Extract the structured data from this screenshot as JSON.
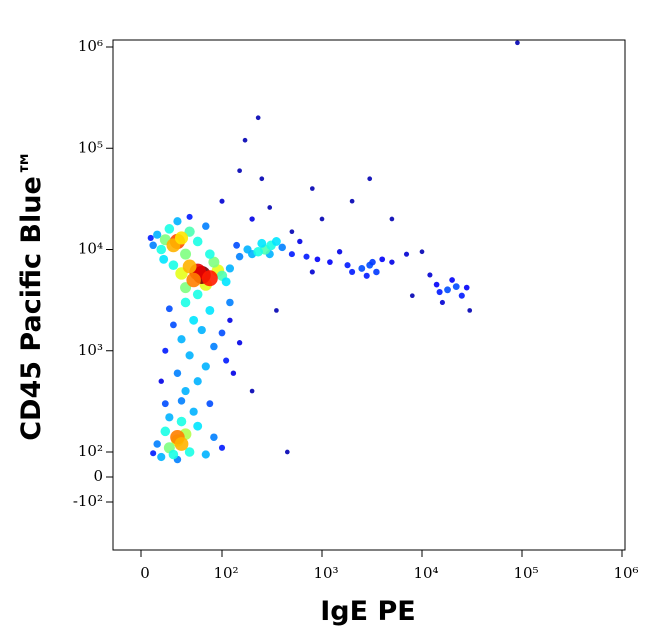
{
  "chart_data": {
    "type": "scatter",
    "x_label": "IgE PE",
    "y_label": "CD45 Pacific Blue™",
    "xlim": [
      -35,
      1070000
    ],
    "ylim": [
      -390,
      1140000
    ],
    "xticks": [
      0,
      {
        "value": 100,
        "label": "10²"
      },
      {
        "value": 1000,
        "label": "10³"
      },
      {
        "value": 10000,
        "label": "10⁴"
      },
      {
        "value": 100000,
        "label": "10⁵"
      },
      {
        "value": 1000000,
        "label": "10⁶"
      }
    ],
    "yticks": [
      {
        "value": -100,
        "label": "-10²"
      },
      0,
      {
        "value": 100,
        "label": "10²"
      },
      {
        "value": 1000,
        "label": "10³"
      },
      {
        "value": 10000,
        "label": "10⁴"
      },
      {
        "value": 100000,
        "label": "10⁵"
      },
      {
        "value": 1000000,
        "label": "10⁶"
      }
    ],
    "x": [
      45,
      35,
      55,
      40,
      60,
      30,
      70,
      25,
      80,
      50,
      20,
      90,
      65,
      35,
      45,
      100,
      15,
      85,
      50,
      30,
      45,
      50,
      55,
      70,
      45,
      80,
      60,
      90,
      50,
      75,
      65,
      100,
      40,
      110,
      30,
      85,
      55,
      120,
      35,
      150,
      130,
      25,
      45,
      40,
      50,
      30,
      60,
      25,
      35,
      55,
      20,
      70,
      15,
      45,
      80,
      28,
      40,
      12,
      60,
      75,
      70,
      85,
      65,
      95,
      60,
      80,
      100,
      55,
      90,
      110,
      70,
      120,
      50,
      85,
      270,
      230,
      310,
      350,
      200,
      250,
      400,
      180,
      300,
      150,
      140,
      500,
      700,
      900,
      1200,
      1800,
      2500,
      3000,
      3500,
      2800,
      4000,
      5000,
      600,
      1500,
      2000,
      3200,
      7000,
      800,
      18000,
      22000,
      15000,
      25000,
      20000,
      14000,
      28000,
      12000,
      16000,
      8000,
      30000,
      300,
      250,
      500,
      1000,
      2000,
      800,
      3000,
      150,
      100,
      200,
      90000,
      450,
      350,
      200,
      120,
      10000,
      5000,
      230,
      170
    ],
    "values": [
      130,
      110,
      150,
      90,
      100,
      160,
      180,
      80,
      90,
      200,
      120,
      140,
      250,
      220,
      70,
      110,
      95,
      300,
      320,
      300,
      140,
      120,
      400,
      500,
      600,
      700,
      900,
      1100,
      1300,
      1600,
      2000,
      1500,
      1800,
      800,
      1000,
      2500,
      3000,
      3000,
      2600,
      1200,
      600,
      500,
      12000,
      11000,
      13000,
      12500,
      15000,
      10000,
      16000,
      9000,
      14000,
      12000,
      11000,
      19000,
      17000,
      8000,
      7000,
      13000,
      21000,
      5600,
      6000,
      5200,
      5000,
      6200,
      6800,
      4500,
      5500,
      4200,
      7500,
      4800,
      3600,
      6500,
      5800,
      9000,
      10000,
      9500,
      11000,
      12000,
      9000,
      11500,
      10500,
      10000,
      9000,
      8500,
      11000,
      9000,
      8500,
      8000,
      7500,
      7000,
      6500,
      7000,
      6000,
      5500,
      8000,
      7500,
      12000,
      9500,
      6000,
      7500,
      9000,
      6000,
      4000,
      4300,
      3800,
      3500,
      5000,
      4500,
      4200,
      5600,
      3000,
      3500,
      2500,
      26000,
      50000,
      15000,
      20000,
      30000,
      40000,
      50000,
      60000,
      30000,
      20000,
      1100000,
      100,
      2500,
      400,
      2000,
      9500,
      20000,
      200000,
      120000
    ],
    "density": [
      0.6,
      0.5,
      0.55,
      0.4,
      0.4,
      0.4,
      0.35,
      0.3,
      0.3,
      0.4,
      0.25,
      0.25,
      0.3,
      0.3,
      0.25,
      0.15,
      0.15,
      0.2,
      0.25,
      0.2,
      0.75,
      0.7,
      0.3,
      0.3,
      0.25,
      0.3,
      0.3,
      0.25,
      0.3,
      0.3,
      0.35,
      0.2,
      0.2,
      0.15,
      0.15,
      0.35,
      0.4,
      0.25,
      0.2,
      0.1,
      0.1,
      0.1,
      0.8,
      0.7,
      0.65,
      0.5,
      0.45,
      0.4,
      0.4,
      0.5,
      0.3,
      0.4,
      0.25,
      0.3,
      0.25,
      0.35,
      0.4,
      0.15,
      0.15,
      1,
      0.9,
      0.85,
      0.75,
      0.6,
      0.7,
      0.6,
      0.45,
      0.5,
      0.5,
      0.35,
      0.4,
      0.3,
      0.6,
      0.4,
      0.45,
      0.4,
      0.4,
      0.35,
      0.3,
      0.35,
      0.25,
      0.3,
      0.3,
      0.25,
      0.2,
      0.15,
      0.15,
      0.12,
      0.12,
      0.15,
      0.2,
      0.2,
      0.18,
      0.15,
      0.12,
      0.1,
      0.1,
      0.1,
      0.15,
      0.18,
      0.08,
      0.08,
      0.2,
      0.2,
      0.15,
      0.15,
      0.12,
      0.12,
      0.12,
      0.08,
      0.08,
      0.05,
      0.05,
      0.05,
      0.05,
      0.05,
      0.05,
      0.05,
      0.05,
      0.05,
      0.05,
      0.08,
      0.1,
      0.05,
      0.05,
      0.05,
      0.05,
      0.1,
      0.05,
      0.05,
      0.05,
      0.05
    ]
  }
}
